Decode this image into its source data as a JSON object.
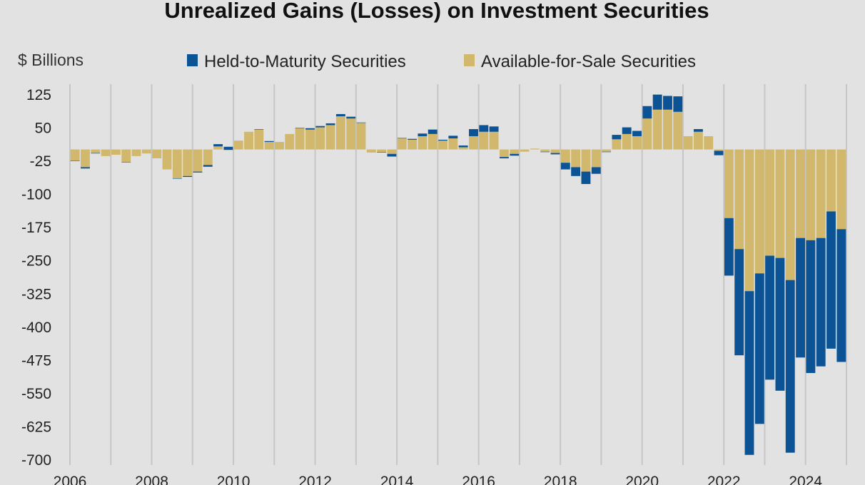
{
  "chart_data": {
    "type": "bar",
    "stacked": true,
    "title": "Unrealized Gains (Losses) on Investment Securities",
    "ylabel": "$ Billions",
    "ylim": [
      -700,
      125
    ],
    "yticks": [
      125,
      50,
      -25,
      -100,
      -175,
      -250,
      -325,
      -400,
      -475,
      -550,
      -625,
      -700
    ],
    "xlim": [
      2006,
      2025
    ],
    "xticks": [
      2006,
      2008,
      2010,
      2012,
      2014,
      2016,
      2018,
      2020,
      2022,
      2024
    ],
    "grid": "vertical",
    "legend_position": "top",
    "colors": {
      "htm": "#0b5394",
      "afs": "#d1b86c",
      "background": "#e2e2e2"
    },
    "series": [
      {
        "name": "Held-to-Maturity Securities",
        "key": "htm",
        "values": [
          -1,
          -3,
          -1,
          0,
          0,
          -1,
          0,
          0,
          0,
          0,
          -1,
          -2,
          -2,
          -4,
          -5,
          -7,
          0,
          0,
          1,
          2,
          0,
          0,
          1,
          3,
          3,
          4,
          5,
          4,
          1,
          0,
          -1,
          -6,
          1,
          2,
          6,
          10,
          2,
          6,
          4,
          16,
          15,
          12,
          -3,
          -4,
          0,
          0,
          -1,
          -3,
          -15,
          -20,
          -28,
          -15,
          -1,
          10,
          15,
          12,
          28,
          34,
          31,
          35,
          0,
          6,
          0,
          -10,
          -130,
          -240,
          -370,
          -340,
          -280,
          -300,
          -390,
          -270,
          -300,
          -290,
          -310,
          -300
        ]
      },
      {
        "name": "Available-for-Sale Securities",
        "key": "afs",
        "values": [
          -25,
          -40,
          -8,
          -15,
          -12,
          -28,
          -15,
          -9,
          -20,
          -45,
          -65,
          -60,
          -50,
          -35,
          12,
          6,
          20,
          40,
          45,
          17,
          17,
          35,
          48,
          45,
          50,
          55,
          75,
          70,
          60,
          -7,
          -6,
          -10,
          25,
          22,
          30,
          35,
          20,
          25,
          5,
          30,
          40,
          40,
          -17,
          -10,
          -5,
          2,
          -5,
          -8,
          -30,
          -40,
          -50,
          -40,
          -5,
          23,
          35,
          30,
          70,
          90,
          90,
          85,
          30,
          40,
          30,
          -3,
          -155,
          -225,
          -320,
          -280,
          -240,
          -245,
          -295,
          -200,
          -205,
          -200,
          -140,
          -180
        ]
      }
    ]
  }
}
